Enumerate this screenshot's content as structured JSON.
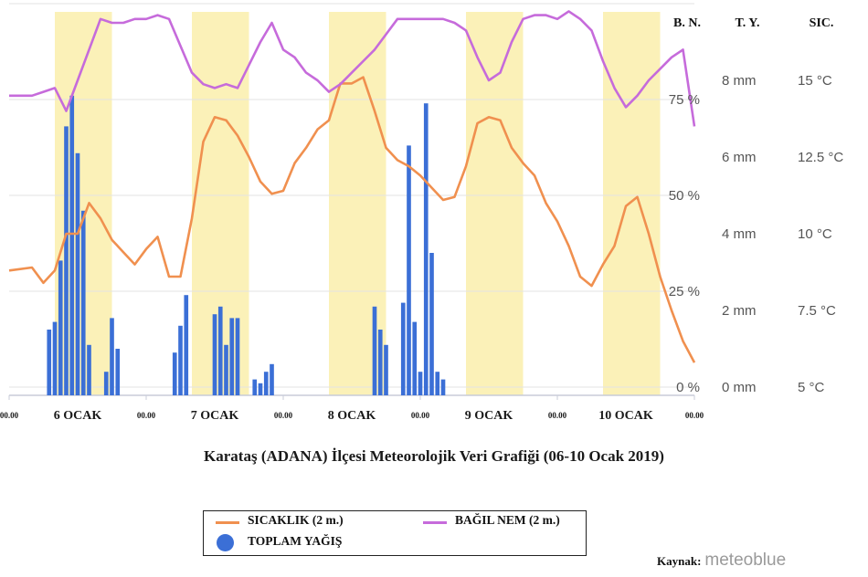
{
  "colors": {
    "temperature": "#F0904F",
    "humidity": "#C66BDB",
    "precipitation": "#3B6FD6",
    "day_band": "#FBF1B8",
    "right_axis_text": "#555555"
  },
  "chart_data": {
    "type": "bar+line",
    "title": "Karataş (ADANA) İlçesi Meteorolojik Veri Grafiği (06-10 Ocak 2019)",
    "x_unit": "hours",
    "xlim": [
      0,
      120
    ],
    "x_tick_labels": [
      "00.00",
      "6 OCAK",
      "00.00",
      "7 OCAK",
      "00.00",
      "8 OCAK",
      "00.00",
      "9 OCAK",
      "00.00",
      "10 OCAK",
      "00.00"
    ],
    "x_tick_positions": [
      0,
      12,
      24,
      36,
      48,
      60,
      72,
      84,
      96,
      108,
      120
    ],
    "axis_headers": [
      "B. N.",
      "T. Y.",
      "SIC."
    ],
    "humidity_axis": {
      "ylim": [
        0,
        100
      ],
      "ticks": [
        "0 %",
        "25 %",
        "50 %",
        "75 %"
      ],
      "tick_values": [
        0,
        25,
        50,
        75
      ]
    },
    "precip_axis": {
      "ylim": [
        0,
        10
      ],
      "ticks": [
        "0 mm",
        "2 mm",
        "4 mm",
        "6 mm",
        "8 mm"
      ],
      "tick_values": [
        0,
        2,
        4,
        6,
        8
      ]
    },
    "temp_axis": {
      "ylim": [
        5,
        17.5
      ],
      "ticks": [
        "5 °C",
        "7.5 °C",
        "10 °C",
        "12.5 °C",
        "15 °C"
      ],
      "tick_values": [
        5,
        7.5,
        10,
        12.5,
        15
      ]
    },
    "daylight_bands": [
      [
        8,
        18
      ],
      [
        32,
        42
      ],
      [
        56,
        66
      ],
      [
        80,
        90
      ],
      [
        104,
        114
      ]
    ],
    "series": [
      {
        "name": "SICAKLIK (2 m.)",
        "axis": "temp",
        "type": "line",
        "x": [
          0,
          4,
          6,
          8,
          10,
          12,
          14,
          16,
          18,
          20,
          22,
          24,
          26,
          28,
          30,
          32,
          34,
          36,
          38,
          40,
          42,
          44,
          46,
          48,
          50,
          52,
          54,
          56,
          58,
          60,
          62,
          64,
          66,
          68,
          70,
          72,
          74,
          76,
          78,
          80,
          82,
          84,
          86,
          88,
          90,
          92,
          94,
          96,
          98,
          100,
          102,
          104,
          106,
          108,
          110,
          112,
          114,
          116,
          118,
          120
        ],
        "values": [
          8.8,
          8.9,
          8.4,
          8.8,
          10.0,
          10.0,
          11.0,
          10.5,
          9.8,
          9.4,
          9.0,
          9.5,
          9.9,
          8.6,
          8.6,
          10.5,
          13.0,
          13.8,
          13.7,
          13.2,
          12.5,
          11.7,
          11.3,
          11.4,
          12.3,
          12.8,
          13.4,
          13.7,
          14.9,
          14.9,
          15.1,
          14.0,
          12.8,
          12.4,
          12.2,
          11.9,
          11.5,
          11.1,
          11.2,
          12.2,
          13.6,
          13.8,
          13.7,
          12.8,
          12.3,
          11.9,
          11.0,
          10.4,
          9.6,
          8.6,
          8.3,
          9.0,
          9.6,
          10.9,
          11.2,
          10.0,
          8.6,
          7.5,
          6.5,
          5.8
        ],
        "_note_": "temperature values in °C"
      },
      {
        "name": "BAĞIL NEM (2 m.)",
        "axis": "humidity",
        "type": "line",
        "x": [
          0,
          2,
          4,
          6,
          8,
          10,
          12,
          14,
          16,
          18,
          20,
          22,
          24,
          26,
          28,
          30,
          32,
          34,
          36,
          38,
          40,
          42,
          44,
          46,
          48,
          50,
          52,
          54,
          56,
          58,
          60,
          62,
          64,
          66,
          68,
          70,
          72,
          74,
          76,
          78,
          80,
          82,
          84,
          86,
          88,
          90,
          92,
          94,
          96,
          98,
          100,
          102,
          104,
          106,
          108,
          110,
          112,
          114,
          116,
          118,
          120
        ],
        "values": [
          76,
          76,
          76,
          77,
          78,
          72,
          80,
          88,
          96,
          95,
          95,
          96,
          96,
          97,
          96,
          89,
          82,
          79,
          78,
          79,
          78,
          84,
          90,
          95,
          88,
          86,
          82,
          80,
          77,
          79,
          82,
          85,
          88,
          92,
          96,
          96,
          96,
          96,
          96,
          95,
          93,
          86,
          80,
          82,
          90,
          96,
          97,
          97,
          96,
          98,
          96,
          93,
          85,
          78,
          73,
          76,
          80,
          83,
          86,
          88,
          68
        ],
        "_note_": "relative humidity in %"
      },
      {
        "name": "TOPLAM YAĞIŞ",
        "axis": "precip",
        "type": "bar",
        "x": [
          7,
          8,
          9,
          10,
          11,
          12,
          13,
          14,
          17,
          18,
          19,
          29,
          30,
          31,
          36,
          37,
          38,
          39,
          40,
          43,
          44,
          45,
          46,
          64,
          65,
          66,
          69,
          70,
          71,
          72,
          73,
          74,
          75,
          76,
          77,
          78,
          79,
          80,
          101,
          102,
          103,
          104,
          105
        ],
        "values": [
          1.5,
          1.7,
          3.3,
          6.8,
          7.6,
          6.1,
          4.6,
          1.1,
          0.4,
          1.8,
          1.0,
          0.9,
          1.6,
          2.4,
          1.9,
          2.1,
          1.1,
          1.8,
          1.8,
          0.2,
          0.1,
          0.4,
          0.6,
          2.1,
          1.5,
          1.1,
          2.2,
          6.3,
          1.7,
          0.4,
          7.4,
          3.5,
          0.4,
          0.2,
          0,
          0,
          0,
          0,
          0,
          0,
          0,
          0,
          0
        ],
        "_note_": "hourly precipitation in mm (bar centers in hours)"
      }
    ]
  },
  "legend": {
    "temperature": "SICAKLIK (2 m.)",
    "humidity": "BAĞIL NEM (2 m.)",
    "precipitation": "TOPLAM YAĞIŞ"
  },
  "source": {
    "label": "Kaynak:",
    "name": "meteoblue"
  }
}
